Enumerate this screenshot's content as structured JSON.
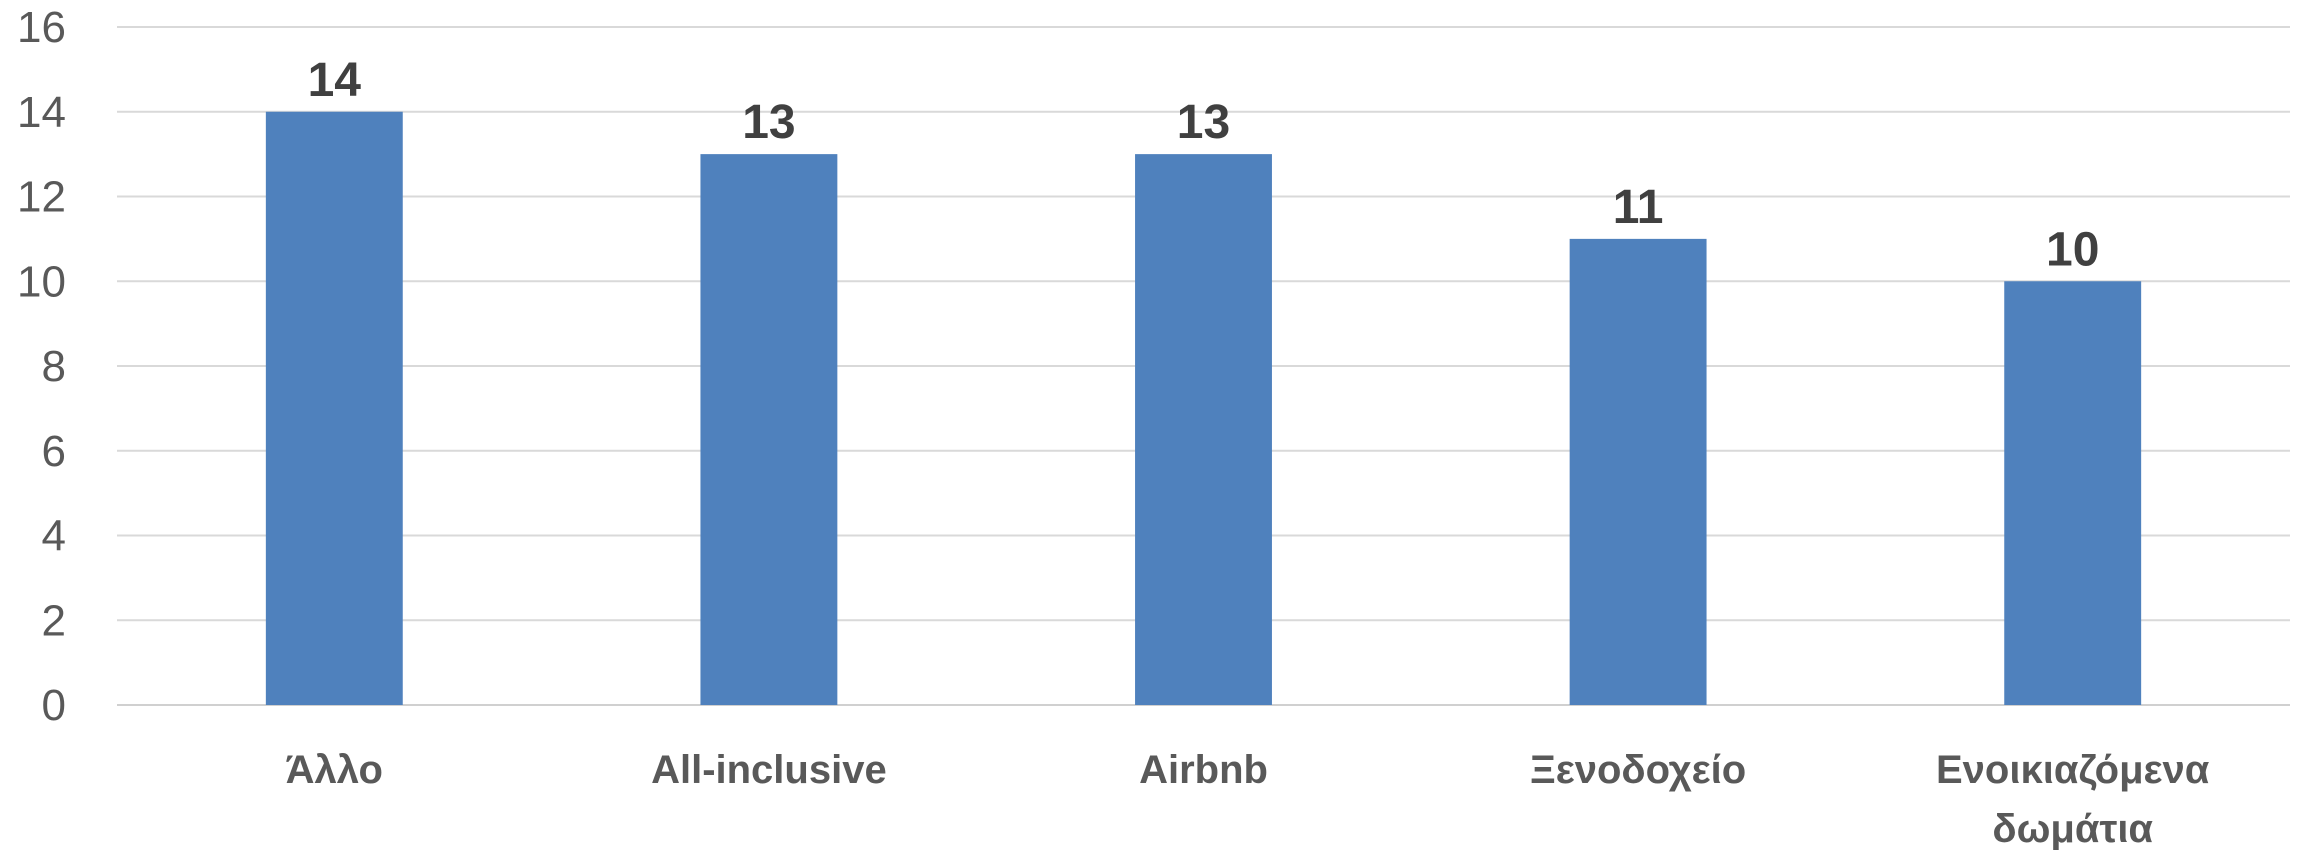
{
  "chart_data": {
    "type": "bar",
    "title": "",
    "xlabel": "",
    "ylabel": "",
    "categories": [
      "Άλλο",
      "All-inclusive",
      "Airbnb",
      "Ξενοδοχείο",
      "Ενοικιαζόμενα δωμάτια"
    ],
    "category_lines": [
      [
        "Άλλο"
      ],
      [
        "All-inclusive"
      ],
      [
        "Airbnb"
      ],
      [
        "Ξενοδοχείο"
      ],
      [
        "Ενοικιαζόμενα",
        "δωμάτια"
      ]
    ],
    "values": [
      14,
      13,
      13,
      11,
      10
    ],
    "ylim": [
      0,
      16
    ],
    "yticks": [
      "0",
      "2",
      "4",
      "6",
      "8",
      "10",
      "12",
      "14",
      "16"
    ],
    "grid": true,
    "legend": "none",
    "bar_color": "#4f81bd"
  }
}
